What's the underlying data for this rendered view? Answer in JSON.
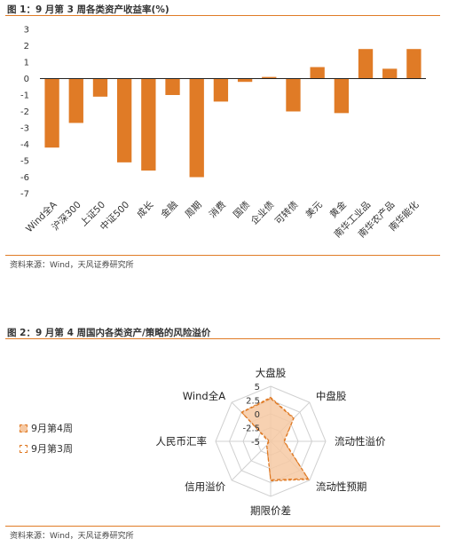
{
  "figure1": {
    "title": "图 1：9 月第 3 周各类资产收益率(%)",
    "source": "资料来源：Wind，天风证券研究所"
  },
  "figure2": {
    "title": "图 2：9 月第 4 周国内各类资产/策略的风险溢价",
    "source": "资料来源：Wind，天风证券研究所"
  },
  "colors": {
    "accent": "#e07b26",
    "bar": "#e07b26",
    "fill": "#f6c9a3",
    "grid": "#d0d0d0"
  },
  "chart_data": [
    {
      "type": "bar",
      "title": "图 1：9 月第 3 周各类资产收益率(%)",
      "categories": [
        "Wind全A",
        "沪深300",
        "上证50",
        "中证500",
        "成长",
        "金融",
        "周期",
        "消费",
        "国债",
        "企业债",
        "可转债",
        "美元",
        "黄金",
        "南华工业品",
        "南华农产品",
        "南华能化"
      ],
      "values": [
        -4.2,
        -2.7,
        -1.1,
        -5.1,
        -5.6,
        -1.0,
        -6.0,
        -1.4,
        -0.2,
        0.1,
        -2.0,
        0.7,
        -2.1,
        1.8,
        0.6,
        1.8
      ],
      "ylim": [
        -7,
        3
      ],
      "yticks": [
        3,
        2,
        1,
        0,
        -1,
        -2,
        -3,
        -4,
        -5,
        -6,
        -7
      ],
      "xlabel": "",
      "ylabel": ""
    },
    {
      "type": "radar",
      "title": "图 2：9 月第 4 周国内各类资产/策略的风险溢价",
      "axes": [
        "大盘股",
        "中盘股",
        "流动性溢价",
        "流动性预期",
        "期限价差",
        "信用溢价",
        "人民币汇率",
        "Wind全A"
      ],
      "rlim": [
        -5,
        5
      ],
      "rticks": [
        "5",
        "2.5",
        "0",
        "-2.5",
        "-5"
      ],
      "series": [
        {
          "name": "9月第4周",
          "values": [
            3.0,
            1.0,
            -2.6,
            4.8,
            2.2,
            -4.0,
            -4.8,
            2.5
          ]
        },
        {
          "name": "9月第3周",
          "values": [
            2.8,
            0.9,
            -2.5,
            4.6,
            2.0,
            -4.0,
            -4.6,
            2.4
          ]
        }
      ]
    }
  ]
}
